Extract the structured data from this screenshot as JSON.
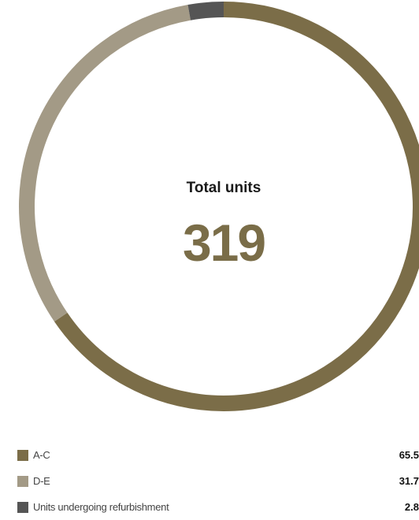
{
  "center": {
    "title": "Total units",
    "value": "319"
  },
  "colors": {
    "ac": "#7b6d48",
    "de": "#a39a86",
    "refurb": "#555555",
    "total_value": "#7a6d48"
  },
  "chart_data": {
    "type": "pie",
    "donut": true,
    "categories": [
      "A-C",
      "D-E",
      "Units undergoing refurbishment"
    ],
    "values": [
      65.5,
      31.7,
      2.8
    ],
    "value_labels": [
      "65.5",
      "31.7",
      "2.8"
    ],
    "colors": [
      "#7b6d48",
      "#a39a86",
      "#555555"
    ],
    "legend": "bottom"
  }
}
